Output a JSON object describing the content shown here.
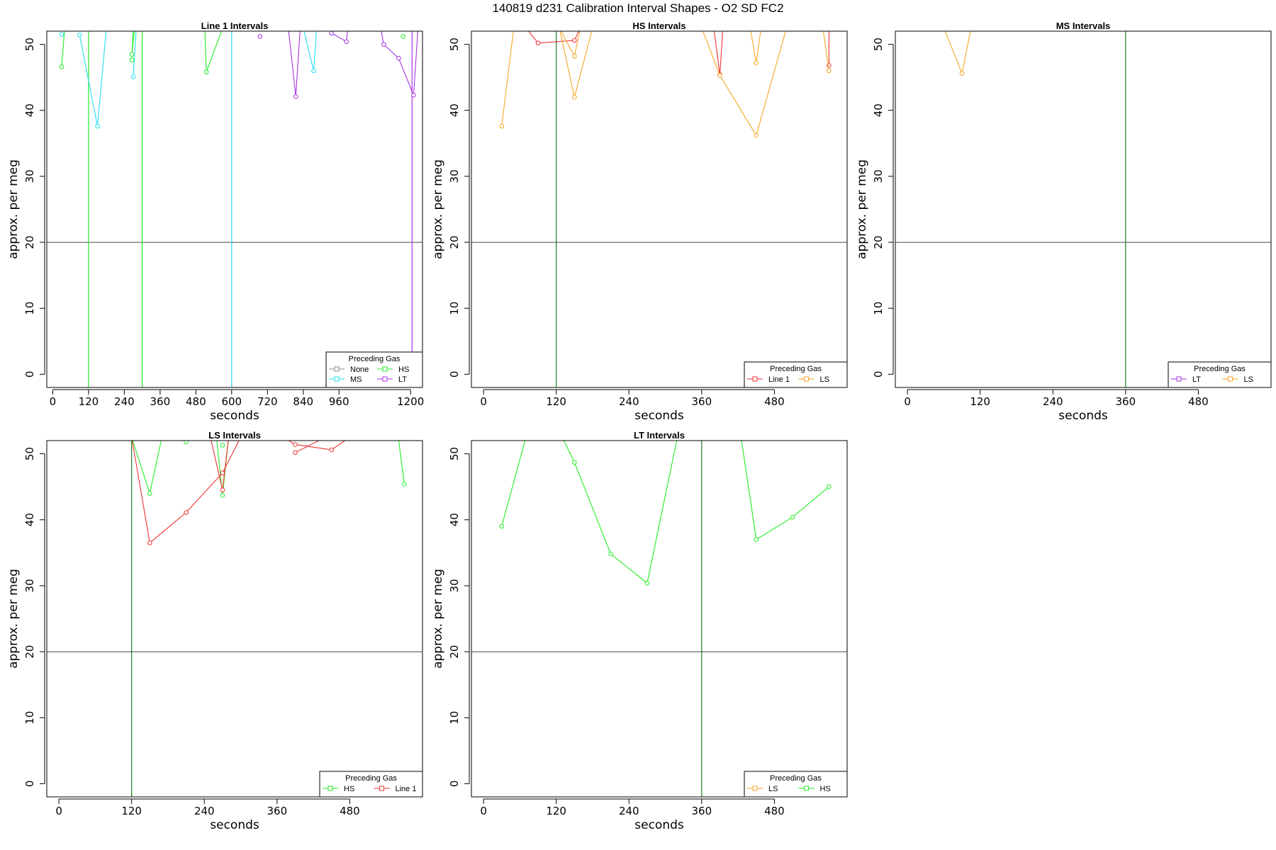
{
  "figure": {
    "title": "140819   d231   Calibration Interval Shapes - O2 SD FC2",
    "colors": {
      "None": "#888888",
      "HS": "#22ee22",
      "MS": "#22e0f0",
      "LT": "#a832e0",
      "Line 1": "#ee3333",
      "LS": "#f5a623",
      "refline": "#444444",
      "vline": "#1e7a1e"
    }
  },
  "chart_data": [
    {
      "type": "line",
      "title": "Line 1 Intervals",
      "xlabel": "seconds",
      "ylabel": "approx. per meg",
      "xlim": [
        -20,
        1240
      ],
      "ylim": [
        -2,
        52
      ],
      "xticks": [
        0,
        120,
        240,
        360,
        480,
        600,
        720,
        840,
        960,
        1200
      ],
      "yticks": [
        0,
        10,
        20,
        30,
        40,
        50
      ],
      "hline": 20,
      "vlines": [
        {
          "x": 120,
          "color": "HS"
        },
        {
          "x": 300,
          "color": "HS"
        },
        {
          "x": 600,
          "color": "MS"
        },
        {
          "x": 1205,
          "color": "LT"
        }
      ],
      "legend": {
        "title": "Preceding Gas",
        "entries": [
          "None",
          "HS",
          "MS",
          "LT"
        ],
        "position": "bottom-right",
        "columns": 2
      },
      "series": [
        {
          "name": "HS",
          "segments": [
            [
              [
                30,
                46.6
              ],
              [
                40,
                52.5
              ]
            ],
            [
              [
                265,
                47.6
              ],
              [
                270,
                52.5
              ]
            ],
            [
              [
                265,
                48.5
              ],
              [
                275,
                52.5
              ]
            ],
            [
              [
                510,
                52.5
              ],
              [
                515,
                45.8
              ],
              [
                570,
                52.5
              ]
            ],
            [
              [
                1175,
                51.2
              ]
            ]
          ]
        },
        {
          "name": "MS",
          "segments": [
            [
              [
                30,
                51.5
              ]
            ],
            [
              [
                90,
                51.4
              ],
              [
                150,
                37.6
              ],
              [
                180,
                52.5
              ]
            ],
            [
              [
                270,
                45.1
              ],
              [
                280,
                52.5
              ]
            ],
            [
              [
                840,
                52.5
              ],
              [
                875,
                46.0
              ],
              [
                885,
                52.5
              ]
            ]
          ]
        },
        {
          "name": "LT",
          "segments": [
            [
              [
                695,
                51.2
              ]
            ],
            [
              [
                790,
                52.5
              ],
              [
                815,
                42.1
              ],
              [
                830,
                52.5
              ]
            ],
            [
              [
                935,
                51.7
              ],
              [
                985,
                50.4
              ],
              [
                990,
                52.5
              ]
            ],
            [
              [
                1100,
                52.5
              ],
              [
                1110,
                50.0
              ],
              [
                1160,
                47.9
              ],
              [
                1210,
                42.3
              ],
              [
                1225,
                52.5
              ]
            ]
          ]
        }
      ]
    },
    {
      "type": "line",
      "title": "HS Intervals",
      "xlabel": "seconds",
      "ylabel": "approx. per meg",
      "xlim": [
        -20,
        600
      ],
      "ylim": [
        -2,
        52
      ],
      "xticks": [
        0,
        120,
        240,
        360,
        480
      ],
      "yticks": [
        0,
        10,
        20,
        30,
        40,
        50
      ],
      "hline": 20,
      "vlines": [
        {
          "x": 120,
          "color": "vline"
        }
      ],
      "legend": {
        "title": "Preceding Gas",
        "entries": [
          "Line 1",
          "LS"
        ],
        "position": "bottom-right",
        "columns": 2
      },
      "series": [
        {
          "name": "Line 1",
          "segments": [
            [
              [
                70,
                52.5
              ],
              [
                90,
                50.2
              ],
              [
                150,
                50.6
              ],
              [
                160,
                52.5
              ]
            ],
            [
              [
                380,
                52.5
              ],
              [
                390,
                45.4
              ],
              [
                395,
                52.5
              ]
            ],
            [
              [
                570,
                52.5
              ],
              [
                570,
                46.8
              ]
            ]
          ]
        },
        {
          "name": "LS",
          "segments": [
            [
              [
                30,
                37.6
              ],
              [
                50,
                52.5
              ]
            ],
            [
              [
                125,
                52.5
              ],
              [
                150,
                48.2
              ],
              [
                160,
                52.5
              ]
            ],
            [
              [
                125,
                52.5
              ],
              [
                150,
                42.0
              ],
              [
                180,
                52.5
              ]
            ],
            [
              [
                360,
                52.5
              ],
              [
                390,
                45.3
              ],
              [
                450,
                36.2
              ],
              [
                500,
                52.5
              ]
            ],
            [
              [
                440,
                52.5
              ],
              [
                450,
                47.2
              ],
              [
                458,
                52.5
              ]
            ],
            [
              [
                560,
                52.5
              ],
              [
                570,
                46.0
              ]
            ]
          ]
        }
      ]
    },
    {
      "type": "line",
      "title": "MS Intervals",
      "xlabel": "seconds",
      "ylabel": "approx. per meg",
      "xlim": [
        -20,
        600
      ],
      "ylim": [
        -2,
        52
      ],
      "xticks": [
        0,
        120,
        240,
        360,
        480
      ],
      "yticks": [
        0,
        10,
        20,
        30,
        40,
        50
      ],
      "hline": 20,
      "vlines": [
        {
          "x": 360,
          "color": "vline"
        }
      ],
      "legend": {
        "title": "Preceding Gas",
        "entries": [
          "LT",
          "LS"
        ],
        "position": "bottom-right",
        "columns": 2
      },
      "series": [
        {
          "name": "LS",
          "segments": [
            [
              [
                60,
                52.5
              ],
              [
                90,
                45.6
              ],
              [
                105,
                52.5
              ]
            ]
          ]
        }
      ]
    },
    {
      "type": "line",
      "title": "LS Intervals",
      "xlabel": "seconds",
      "ylabel": "approx. per meg",
      "xlim": [
        -20,
        600
      ],
      "ylim": [
        -2,
        52
      ],
      "xticks": [
        0,
        120,
        240,
        360,
        480
      ],
      "yticks": [
        0,
        10,
        20,
        30,
        40,
        50
      ],
      "hline": 20,
      "vlines": [
        {
          "x": 120,
          "color": "vline"
        }
      ],
      "legend": {
        "title": "Preceding Gas",
        "entries": [
          "HS",
          "Line 1"
        ],
        "position": "bottom-right",
        "columns": 2
      },
      "series": [
        {
          "name": "HS",
          "segments": [
            [
              [
                120,
                52.5
              ],
              [
                150,
                44.0
              ],
              [
                170,
                52.5
              ]
            ],
            [
              [
                210,
                51.8
              ]
            ],
            [
              [
                260,
                52.5
              ],
              [
                270,
                43.7
              ],
              [
                280,
                52.5
              ]
            ],
            [
              [
                270,
                51.3
              ]
            ],
            [
              [
                560,
                52.5
              ],
              [
                570,
                45.4
              ]
            ]
          ]
        },
        {
          "name": "Line 1",
          "segments": [
            [
              [
                120,
                52.5
              ],
              [
                150,
                36.5
              ],
              [
                210,
                41.1
              ],
              [
                270,
                47.1
              ],
              [
                300,
                52.5
              ]
            ],
            [
              [
                250,
                52.5
              ],
              [
                270,
                44.5
              ],
              [
                280,
                52.5
              ]
            ],
            [
              [
                370,
                52.5
              ],
              [
                390,
                51.4
              ],
              [
                450,
                50.6
              ],
              [
                480,
                52.5
              ]
            ],
            [
              [
                390,
                50.2
              ],
              [
                440,
                52.5
              ]
            ]
          ]
        }
      ]
    },
    {
      "type": "line",
      "title": "LT Intervals",
      "xlabel": "seconds",
      "ylabel": "approx. per meg",
      "xlim": [
        -20,
        600
      ],
      "ylim": [
        -2,
        52
      ],
      "xticks": [
        0,
        120,
        240,
        360,
        480
      ],
      "yticks": [
        0,
        10,
        20,
        30,
        40,
        50
      ],
      "hline": 20,
      "vlines": [
        {
          "x": 360,
          "color": "vline"
        }
      ],
      "legend": {
        "title": "Preceding Gas",
        "entries": [
          "LS",
          "HS"
        ],
        "position": "bottom-right",
        "columns": 2
      },
      "series": [
        {
          "name": "HS",
          "segments": [
            [
              [
                30,
                39.0
              ],
              [
                70,
                52.5
              ]
            ],
            [
              [
                130,
                52.5
              ],
              [
                150,
                48.7
              ],
              [
                210,
                34.8
              ],
              [
                270,
                30.4
              ],
              [
                320,
                52.5
              ]
            ],
            [
              [
                425,
                52.5
              ],
              [
                450,
                37.0
              ],
              [
                510,
                40.4
              ],
              [
                570,
                45.0
              ]
            ]
          ]
        }
      ]
    }
  ]
}
